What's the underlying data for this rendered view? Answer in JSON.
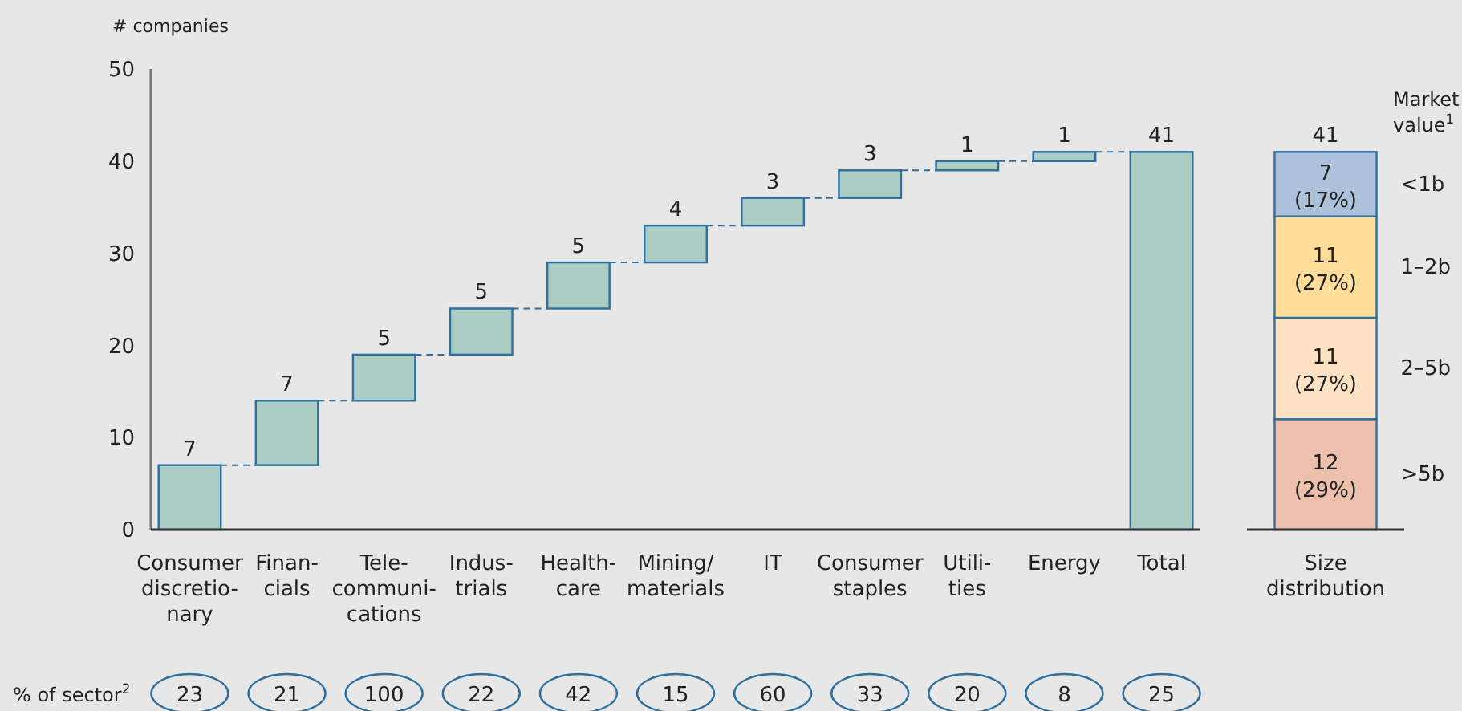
{
  "chart_data": [
    {
      "type": "bar",
      "ylabel": "# companies",
      "categories": [
        "Consumer\ndiscretio-\nnary",
        "Finan-\ncials",
        "Tele-\ncommuni-\ncations",
        "Indus-\ntrials",
        "Health-\ncare",
        "Mining/\nmaterials",
        "IT",
        "Consumer\nstaples",
        "Utili-\nties",
        "Energy",
        "Total"
      ],
      "values": [
        7,
        7,
        5,
        5,
        5,
        4,
        3,
        3,
        1,
        1,
        41
      ],
      "base": [
        0,
        7,
        14,
        19,
        24,
        29,
        33,
        36,
        39,
        40,
        0
      ],
      "color": "#abcdc4",
      "data_labels": true,
      "ylim": [
        0,
        50
      ],
      "yticks": [
        0,
        10,
        20,
        30,
        40,
        50
      ],
      "grid": false,
      "legend": false,
      "annotations": [
        "% of sector$^{2}$",
        "23",
        "21",
        "100",
        "22",
        "42",
        "15",
        "60",
        "33",
        "20",
        "8",
        "25"
      ]
    },
    {
      "type": "bar",
      "stacked": true,
      "categories": [
        "Size\ndistribution"
      ],
      "legend_title": "Market\nvalue$^{1}$",
      "legend": "right",
      "ylim": [
        0,
        50
      ],
      "tick_labels": "x",
      "totals": [
        "41"
      ],
      "series": [
        {
          "name": ">5b",
          "color": "#ecc0ac",
          "values": [
            12
          ],
          "value_labels": [
            "12\n(29%)"
          ]
        },
        {
          "name": "2–5b",
          "color": "#fde2c4",
          "values": [
            11
          ],
          "value_labels": [
            "11\n(27%)"
          ]
        },
        {
          "name": "1–2b",
          "color": "#fddd98",
          "values": [
            11
          ],
          "value_labels": [
            "11\n(27%)"
          ]
        },
        {
          "name": "<1b",
          "color": "#adc1db",
          "values": [
            7
          ],
          "value_labels": [
            "7\n(17%)"
          ]
        }
      ]
    }
  ]
}
